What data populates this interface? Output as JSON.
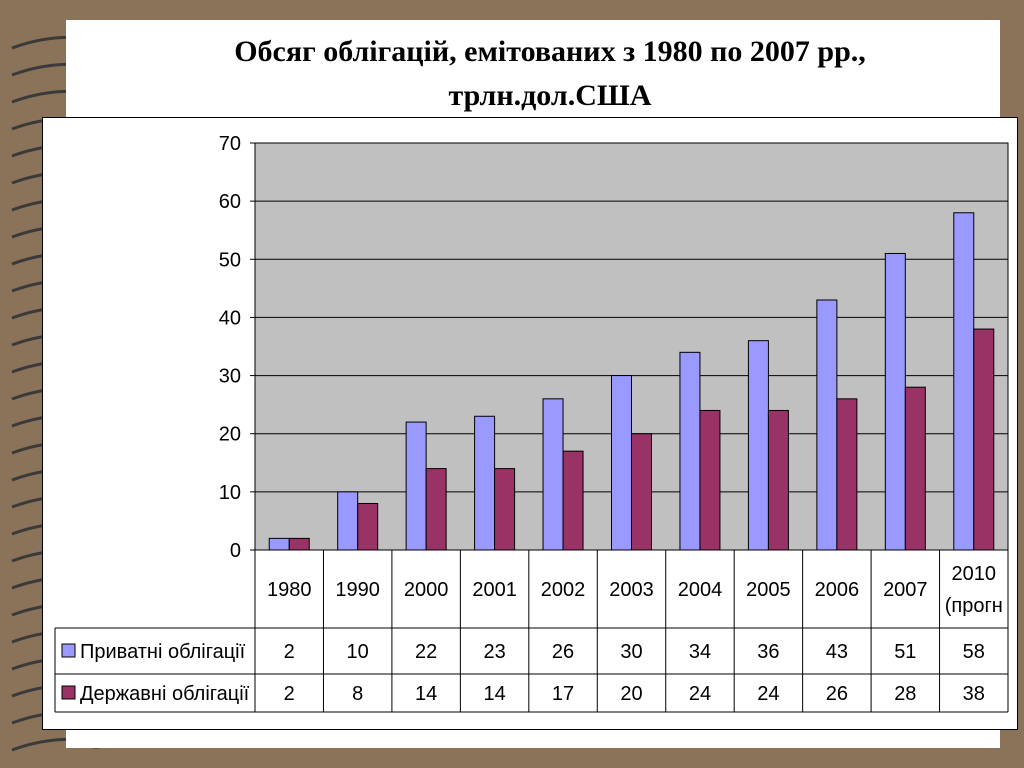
{
  "slide": {
    "title_line1": "Обсяг облігацій, емітованих з 1980 по 2007 рр.,",
    "title_line2": "трлн.дол.США"
  },
  "colors": {
    "background": "#8b7359",
    "plot_area": "#c0c0c0",
    "series_private": "#9999ff",
    "series_state": "#993366"
  },
  "chart_data": {
    "type": "bar",
    "title": "",
    "xlabel": "",
    "ylabel": "",
    "ylim": [
      0,
      70
    ],
    "yticks": [
      0,
      10,
      20,
      30,
      40,
      50,
      60,
      70
    ],
    "grid": true,
    "legend": "data-table-left",
    "categories": [
      "1980",
      "1990",
      "2000",
      "2001",
      "2002",
      "2003",
      "2004",
      "2005",
      "2006",
      "2007",
      "2010 (прогн"
    ],
    "series": [
      {
        "name": "Приватні облігації",
        "values": [
          2,
          10,
          22,
          23,
          26,
          30,
          34,
          36,
          43,
          51,
          58
        ]
      },
      {
        "name": "Державні облігації",
        "values": [
          2,
          8,
          14,
          14,
          17,
          20,
          24,
          24,
          26,
          28,
          38
        ]
      }
    ]
  }
}
